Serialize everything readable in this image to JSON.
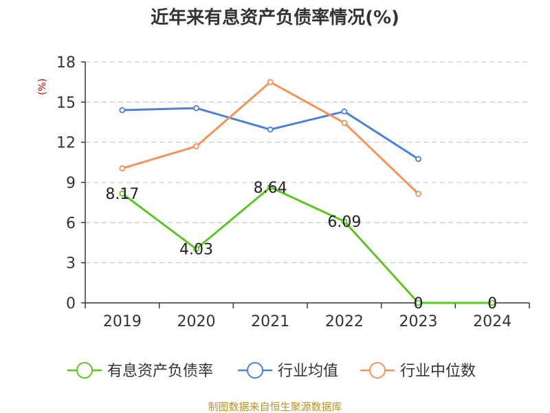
{
  "chart_data": {
    "type": "line",
    "title": "近年来有息资产负债率情况(%)",
    "unit_label": "(%)",
    "categories": [
      "2019",
      "2020",
      "2021",
      "2022",
      "2023",
      "2024"
    ],
    "ylim": [
      0,
      18
    ],
    "yticks": [
      0,
      3,
      6,
      9,
      12,
      15,
      18
    ],
    "grid": true,
    "legend_position": "bottom",
    "series": [
      {
        "name": "有息资产负债率",
        "color": "#5bc423",
        "values": [
          8.17,
          4.03,
          8.64,
          6.09,
          0,
          0
        ],
        "labels": [
          "8.17",
          "4.03",
          "8.64",
          "6.09",
          "0",
          "0"
        ]
      },
      {
        "name": "行业均值",
        "color": "#4e7fd8",
        "values": [
          14.4,
          14.55,
          12.95,
          14.3,
          10.75,
          null
        ]
      },
      {
        "name": "行业中位数",
        "color": "#f5925a",
        "values": [
          10.05,
          11.7,
          16.5,
          13.45,
          8.15,
          null
        ]
      }
    ]
  },
  "source": "制图数据来自恒生聚源数据库"
}
